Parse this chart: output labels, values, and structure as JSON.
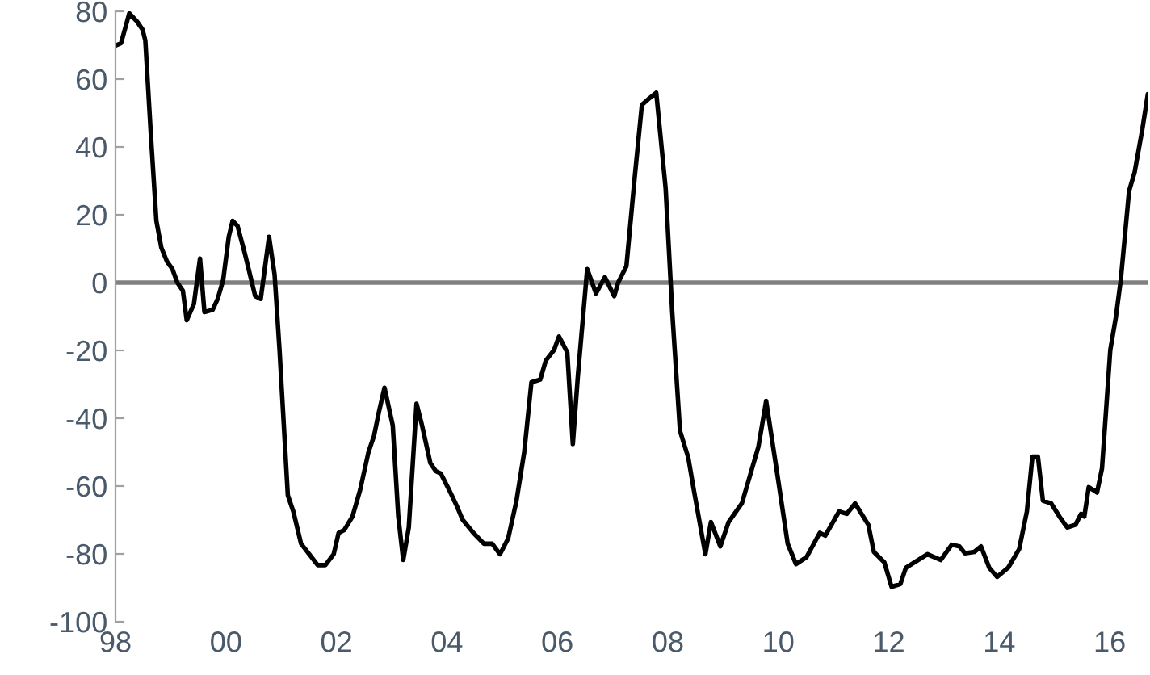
{
  "chart_data": {
    "type": "line",
    "x": [
      1998.0,
      1998.1,
      1998.25,
      1998.39,
      1998.49,
      1998.54,
      1998.64,
      1998.74,
      1998.83,
      1998.93,
      1999.03,
      1999.12,
      1999.22,
      1999.29,
      1999.42,
      1999.53,
      1999.61,
      1999.76,
      1999.85,
      1999.95,
      2000.05,
      2000.12,
      2000.21,
      2000.34,
      2000.53,
      2000.63,
      2000.78,
      2000.88,
      2000.97,
      2001.12,
      2001.22,
      2001.36,
      2001.51,
      2001.66,
      2001.8,
      2001.95,
      2002.04,
      2002.14,
      2002.29,
      2002.43,
      2002.58,
      2002.68,
      2002.77,
      2002.87,
      2003.02,
      2003.12,
      2003.21,
      2003.31,
      2003.45,
      2003.55,
      2003.7,
      2003.8,
      2003.89,
      2004.04,
      2004.18,
      2004.28,
      2004.48,
      2004.67,
      2004.82,
      2004.96,
      2005.11,
      2005.26,
      2005.4,
      2005.53,
      2005.69,
      2005.79,
      2005.94,
      2006.03,
      2006.18,
      2006.28,
      2006.37,
      2006.54,
      2006.7,
      2006.86,
      2007.03,
      2007.1,
      2007.25,
      2007.4,
      2007.53,
      2007.64,
      2007.79,
      2007.96,
      2008.08,
      2008.22,
      2008.37,
      2008.47,
      2008.68,
      2008.78,
      2008.95,
      2009.1,
      2009.34,
      2009.64,
      2009.78,
      2009.98,
      2010.17,
      2010.32,
      2010.51,
      2010.75,
      2010.85,
      2011.1,
      2011.24,
      2011.39,
      2011.63,
      2011.73,
      2011.92,
      2012.05,
      2012.21,
      2012.31,
      2012.7,
      2012.94,
      2013.14,
      2013.28,
      2013.38,
      2013.55,
      2013.67,
      2013.82,
      2013.96,
      2014.16,
      2014.36,
      2014.5,
      2014.6,
      2014.7,
      2014.79,
      2014.94,
      2015.09,
      2015.23,
      2015.38,
      2015.48,
      2015.54,
      2015.62,
      2015.77,
      2015.86,
      2016.01,
      2016.11,
      2016.2,
      2016.35,
      2016.45,
      2016.59,
      2016.69
    ],
    "series": [
      {
        "color": "#000000",
        "values": [
          69.9,
          70.6,
          79.4,
          77.0,
          74.6,
          71.4,
          43.7,
          18.2,
          10.3,
          6.3,
          4.0,
          0,
          -2.4,
          -11.1,
          -6.3,
          7.1,
          -8.7,
          -8.0,
          -4.8,
          0.8,
          13.5,
          18.2,
          16.7,
          8.7,
          -4.0,
          -4.8,
          13.5,
          2.4,
          -19.9,
          -62.7,
          -67.5,
          -77.0,
          -80.1,
          -83.3,
          -83.3,
          -80.1,
          -73.8,
          -73.0,
          -69.0,
          -61.1,
          -50,
          -45.2,
          -38.1,
          -31.0,
          -42.1,
          -69.0,
          -81.8,
          -72.2,
          -35.7,
          -42.1,
          -53.2,
          -55.6,
          -56.3,
          -61.1,
          -65.9,
          -69.8,
          -73.8,
          -77.0,
          -77.0,
          -80.1,
          -75.4,
          -64.3,
          -50,
          -29.4,
          -28.6,
          -23.0,
          -19.9,
          -15.9,
          -20.6,
          -47.6,
          -27.8,
          4.0,
          -3.2,
          1.6,
          -4.0,
          0,
          4.8,
          31.0,
          52.4,
          54.0,
          56.0,
          27.8,
          -8.7,
          -43.7,
          -51.6,
          -61.1,
          -80.1,
          -70.6,
          -77.8,
          -70.6,
          -65.1,
          -48.4,
          -34.9,
          -56.3,
          -77.0,
          -83.0,
          -81.0,
          -73.8,
          -74.6,
          -67.5,
          -68.2,
          -65.1,
          -71.4,
          -79.4,
          -82.5,
          -89.7,
          -88.9,
          -84.1,
          -80.1,
          -81.8,
          -77.3,
          -77.8,
          -79.8,
          -79.4,
          -77.8,
          -84.1,
          -86.8,
          -84.1,
          -78.6,
          -67.5,
          -51.3,
          -51.3,
          -64.3,
          -65.1,
          -69.0,
          -72.2,
          -71.4,
          -68.2,
          -69.0,
          -60.3,
          -61.9,
          -54.8,
          -19.9,
          -10.3,
          0.8,
          27.0,
          32.5,
          45.2,
          55.6
        ]
      }
    ],
    "xlim": [
      1998,
      2016.7
    ],
    "xticks": [
      {
        "value": 1998,
        "label": "98"
      },
      {
        "value": 2000,
        "label": "00"
      },
      {
        "value": 2002,
        "label": "02"
      },
      {
        "value": 2004,
        "label": "04"
      },
      {
        "value": 2006,
        "label": "06"
      },
      {
        "value": 2008,
        "label": "08"
      },
      {
        "value": 2010,
        "label": "10"
      },
      {
        "value": 2012,
        "label": "12"
      },
      {
        "value": 2014,
        "label": "14"
      },
      {
        "value": 2016,
        "label": "16"
      }
    ],
    "ylim": [
      -100,
      80
    ],
    "yticks": [
      80,
      60,
      40,
      20,
      0,
      -20,
      -40,
      -60,
      -80,
      -100
    ],
    "ref_lines": [
      {
        "axis": "y",
        "value": 0,
        "color": "#808080",
        "line_style": "solid"
      }
    ],
    "grid": false,
    "legend": false,
    "marker": "none",
    "line_style": "solid"
  }
}
